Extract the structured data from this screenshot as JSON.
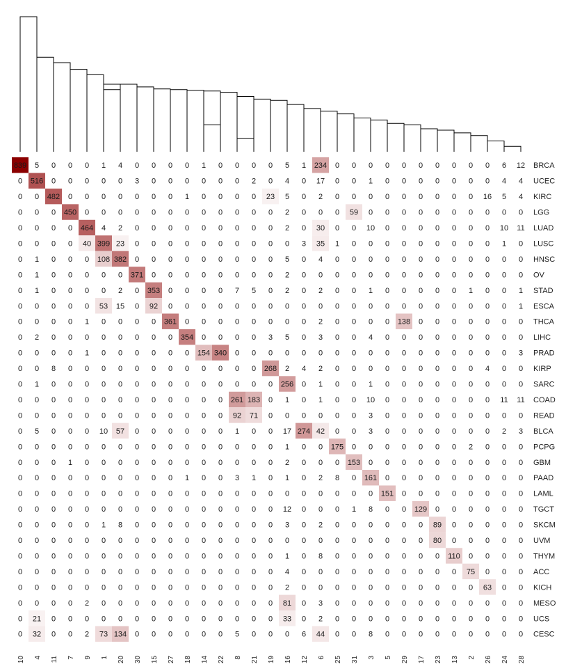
{
  "chart_data": {
    "type": "heatmap",
    "title": "",
    "xlabel": "",
    "ylabel": "",
    "color_low": "#ffffff",
    "color_high": "#8b0000",
    "has_dendrogram": true,
    "row_labels": [
      "BRCA",
      "UCEC",
      "KIRC",
      "LGG",
      "LUAD",
      "LUSC",
      "HNSC",
      "OV",
      "STAD",
      "ESCA",
      "THCA",
      "LIHC",
      "PRAD",
      "KIRP",
      "SARC",
      "COAD",
      "READ",
      "BLCA",
      "PCPG",
      "GBM",
      "PAAD",
      "LAML",
      "TGCT",
      "SKCM",
      "UVM",
      "THYM",
      "ACC",
      "KICH",
      "MESO",
      "UCS",
      "CESC"
    ],
    "col_labels": [
      "10",
      "4",
      "11",
      "7",
      "9",
      "1",
      "20",
      "30",
      "15",
      "27",
      "18",
      "14",
      "22",
      "8",
      "21",
      "19",
      "16",
      "12",
      "6",
      "25",
      "31",
      "3",
      "5",
      "29",
      "17",
      "23",
      "13",
      "2",
      "26",
      "24",
      "28"
    ],
    "values": [
      [
        839,
        5,
        0,
        0,
        0,
        1,
        4,
        0,
        0,
        0,
        0,
        1,
        0,
        0,
        0,
        0,
        5,
        1,
        234,
        0,
        0,
        0,
        0,
        0,
        0,
        0,
        0,
        0,
        0,
        6,
        12
      ],
      [
        0,
        516,
        0,
        0,
        0,
        0,
        0,
        3,
        0,
        0,
        0,
        0,
        0,
        0,
        2,
        0,
        4,
        0,
        17,
        0,
        0,
        1,
        0,
        0,
        0,
        0,
        0,
        0,
        0,
        4,
        4
      ],
      [
        0,
        0,
        482,
        0,
        0,
        0,
        0,
        0,
        0,
        0,
        1,
        0,
        0,
        0,
        0,
        23,
        5,
        0,
        2,
        0,
        0,
        0,
        0,
        0,
        0,
        0,
        0,
        0,
        16,
        5,
        4
      ],
      [
        0,
        0,
        0,
        450,
        0,
        0,
        0,
        0,
        0,
        0,
        0,
        0,
        0,
        0,
        0,
        0,
        2,
        0,
        0,
        0,
        59,
        0,
        0,
        0,
        0,
        0,
        0,
        0,
        0,
        0,
        0
      ],
      [
        0,
        0,
        0,
        0,
        464,
        4,
        2,
        0,
        0,
        0,
        0,
        0,
        0,
        0,
        0,
        0,
        2,
        0,
        30,
        0,
        0,
        10,
        0,
        0,
        0,
        0,
        0,
        0,
        0,
        10,
        11
      ],
      [
        0,
        0,
        0,
        0,
        40,
        399,
        23,
        0,
        0,
        0,
        0,
        0,
        0,
        0,
        0,
        0,
        0,
        3,
        35,
        1,
        0,
        0,
        0,
        0,
        0,
        0,
        0,
        0,
        0,
        1,
        0
      ],
      [
        0,
        1,
        0,
        0,
        0,
        108,
        382,
        0,
        0,
        0,
        0,
        0,
        0,
        0,
        0,
        0,
        5,
        0,
        4,
        0,
        0,
        0,
        0,
        0,
        0,
        0,
        0,
        0,
        0,
        0,
        0
      ],
      [
        0,
        1,
        0,
        0,
        0,
        0,
        0,
        371,
        0,
        0,
        0,
        0,
        0,
        0,
        0,
        0,
        2,
        0,
        0,
        0,
        0,
        0,
        0,
        0,
        0,
        0,
        0,
        0,
        0,
        0,
        0
      ],
      [
        0,
        1,
        0,
        0,
        0,
        0,
        2,
        0,
        353,
        0,
        0,
        0,
        0,
        7,
        5,
        0,
        2,
        0,
        2,
        0,
        0,
        1,
        0,
        0,
        0,
        0,
        0,
        1,
        0,
        0,
        1
      ],
      [
        0,
        0,
        0,
        0,
        0,
        53,
        15,
        0,
        92,
        0,
        0,
        0,
        0,
        0,
        0,
        0,
        0,
        0,
        0,
        0,
        0,
        0,
        0,
        0,
        0,
        0,
        0,
        0,
        0,
        0,
        1
      ],
      [
        0,
        0,
        0,
        0,
        1,
        0,
        0,
        0,
        0,
        361,
        0,
        0,
        0,
        0,
        0,
        0,
        0,
        0,
        2,
        0,
        0,
        0,
        0,
        138,
        0,
        0,
        0,
        0,
        0,
        0,
        0
      ],
      [
        0,
        2,
        0,
        0,
        0,
        0,
        0,
        0,
        0,
        0,
        354,
        0,
        0,
        0,
        0,
        3,
        5,
        0,
        3,
        0,
        0,
        4,
        0,
        0,
        0,
        0,
        0,
        0,
        0,
        0,
        0
      ],
      [
        0,
        0,
        0,
        0,
        1,
        0,
        0,
        0,
        0,
        0,
        0,
        154,
        340,
        0,
        0,
        0,
        0,
        0,
        0,
        0,
        0,
        0,
        0,
        0,
        0,
        0,
        0,
        0,
        0,
        0,
        3
      ],
      [
        0,
        0,
        8,
        0,
        0,
        0,
        0,
        0,
        0,
        0,
        0,
        0,
        0,
        0,
        0,
        268,
        2,
        4,
        2,
        0,
        0,
        0,
        0,
        0,
        0,
        0,
        0,
        0,
        4,
        0,
        0
      ],
      [
        0,
        1,
        0,
        0,
        0,
        0,
        0,
        0,
        0,
        0,
        0,
        0,
        0,
        0,
        0,
        0,
        256,
        0,
        1,
        0,
        0,
        1,
        0,
        0,
        0,
        0,
        0,
        0,
        0,
        0,
        0
      ],
      [
        0,
        0,
        0,
        0,
        0,
        0,
        0,
        0,
        0,
        0,
        0,
        0,
        0,
        261,
        183,
        0,
        1,
        0,
        1,
        0,
        0,
        10,
        0,
        0,
        0,
        0,
        0,
        0,
        0,
        11,
        11
      ],
      [
        0,
        0,
        0,
        0,
        0,
        0,
        0,
        0,
        0,
        0,
        0,
        0,
        0,
        92,
        71,
        0,
        0,
        0,
        0,
        0,
        0,
        3,
        0,
        0,
        0,
        0,
        0,
        0,
        0,
        0,
        0
      ],
      [
        0,
        5,
        0,
        0,
        0,
        10,
        57,
        0,
        0,
        0,
        0,
        0,
        0,
        1,
        0,
        0,
        17,
        274,
        42,
        0,
        0,
        3,
        0,
        0,
        0,
        0,
        0,
        0,
        0,
        2,
        3
      ],
      [
        0,
        0,
        0,
        0,
        0,
        0,
        0,
        0,
        0,
        0,
        0,
        0,
        0,
        0,
        0,
        0,
        1,
        0,
        0,
        175,
        0,
        0,
        0,
        0,
        0,
        0,
        0,
        2,
        0,
        0,
        0
      ],
      [
        0,
        0,
        0,
        1,
        0,
        0,
        0,
        0,
        0,
        0,
        0,
        0,
        0,
        0,
        0,
        0,
        2,
        0,
        0,
        0,
        153,
        0,
        0,
        0,
        0,
        0,
        0,
        0,
        0,
        0,
        0
      ],
      [
        0,
        0,
        0,
        0,
        0,
        0,
        0,
        0,
        0,
        0,
        1,
        0,
        0,
        3,
        1,
        0,
        1,
        0,
        2,
        8,
        0,
        161,
        0,
        0,
        0,
        0,
        0,
        0,
        0,
        0,
        0
      ],
      [
        0,
        0,
        0,
        0,
        0,
        0,
        0,
        0,
        0,
        0,
        0,
        0,
        0,
        0,
        0,
        0,
        0,
        0,
        0,
        0,
        0,
        0,
        151,
        0,
        0,
        0,
        0,
        0,
        0,
        0,
        0
      ],
      [
        0,
        0,
        0,
        0,
        0,
        0,
        0,
        0,
        0,
        0,
        0,
        0,
        0,
        0,
        0,
        0,
        12,
        0,
        0,
        0,
        1,
        8,
        0,
        0,
        129,
        0,
        0,
        0,
        0,
        0,
        0
      ],
      [
        0,
        0,
        0,
        0,
        0,
        1,
        8,
        0,
        0,
        0,
        0,
        0,
        0,
        0,
        0,
        0,
        3,
        0,
        2,
        0,
        0,
        0,
        0,
        0,
        0,
        89,
        0,
        0,
        0,
        0,
        0
      ],
      [
        0,
        0,
        0,
        0,
        0,
        0,
        0,
        0,
        0,
        0,
        0,
        0,
        0,
        0,
        0,
        0,
        0,
        0,
        0,
        0,
        0,
        0,
        0,
        0,
        0,
        80,
        0,
        0,
        0,
        0,
        0
      ],
      [
        0,
        0,
        0,
        0,
        0,
        0,
        0,
        0,
        0,
        0,
        0,
        0,
        0,
        0,
        0,
        0,
        1,
        0,
        8,
        0,
        0,
        0,
        0,
        0,
        0,
        0,
        110,
        0,
        0,
        0,
        0
      ],
      [
        0,
        0,
        0,
        0,
        0,
        0,
        0,
        0,
        0,
        0,
        0,
        0,
        0,
        0,
        0,
        0,
        4,
        0,
        0,
        0,
        0,
        0,
        0,
        0,
        0,
        0,
        0,
        75,
        0,
        0,
        0
      ],
      [
        0,
        0,
        0,
        0,
        0,
        0,
        0,
        0,
        0,
        0,
        0,
        0,
        0,
        0,
        0,
        0,
        2,
        0,
        0,
        0,
        0,
        0,
        0,
        0,
        0,
        0,
        0,
        0,
        63,
        0,
        0
      ],
      [
        0,
        0,
        0,
        0,
        2,
        0,
        0,
        0,
        0,
        0,
        0,
        0,
        0,
        0,
        0,
        0,
        81,
        0,
        3,
        0,
        0,
        0,
        0,
        0,
        0,
        0,
        0,
        0,
        0,
        0,
        0
      ],
      [
        0,
        21,
        0,
        0,
        0,
        0,
        0,
        0,
        0,
        0,
        0,
        0,
        0,
        0,
        0,
        0,
        33,
        0,
        2,
        0,
        0,
        0,
        0,
        0,
        0,
        0,
        0,
        0,
        0,
        0,
        0
      ],
      [
        0,
        32,
        0,
        0,
        2,
        73,
        134,
        0,
        0,
        0,
        0,
        0,
        0,
        5,
        0,
        0,
        0,
        6,
        44,
        0,
        0,
        8,
        0,
        0,
        0,
        0,
        0,
        0,
        0,
        0,
        0
      ]
    ],
    "dendrogram": [
      {
        "a": 0,
        "b": 1,
        "h": 1.0
      },
      {
        "a": 1,
        "b": 2,
        "h": 0.7
      },
      {
        "a": 2,
        "b": 3,
        "h": 0.66
      },
      {
        "a": 3,
        "b": 4,
        "h": 0.61
      },
      {
        "a": 4,
        "b": 5,
        "h": 0.57
      },
      {
        "a": 5,
        "b": 6,
        "h": 0.46
      },
      {
        "a": 5,
        "b": 6,
        "h": 0.5
      },
      {
        "a": 6,
        "b": 7,
        "h": 0.5
      },
      {
        "a": 7,
        "b": 8,
        "h": 0.48
      },
      {
        "a": 8,
        "b": 9,
        "h": 0.465
      },
      {
        "a": 9,
        "b": 10,
        "h": 0.46
      },
      {
        "a": 10,
        "b": 11,
        "h": 0.455
      },
      {
        "a": 11,
        "b": 12,
        "h": 0.2
      },
      {
        "a": 11,
        "b": 12,
        "h": 0.45
      },
      {
        "a": 12,
        "b": 13,
        "h": 0.44
      },
      {
        "a": 13,
        "b": 14,
        "h": 0.1
      },
      {
        "a": 13,
        "b": 14,
        "h": 0.41
      },
      {
        "a": 14,
        "b": 15,
        "h": 0.39
      },
      {
        "a": 15,
        "b": 16,
        "h": 0.38
      },
      {
        "a": 16,
        "b": 17,
        "h": 0.35
      },
      {
        "a": 17,
        "b": 18,
        "h": 0.32
      },
      {
        "a": 18,
        "b": 19,
        "h": 0.3
      },
      {
        "a": 19,
        "b": 20,
        "h": 0.28
      },
      {
        "a": 20,
        "b": 21,
        "h": 0.25
      },
      {
        "a": 21,
        "b": 22,
        "h": 0.235
      },
      {
        "a": 22,
        "b": 23,
        "h": 0.21
      },
      {
        "a": 23,
        "b": 24,
        "h": 0.2
      },
      {
        "a": 24,
        "b": 25,
        "h": 0.17
      },
      {
        "a": 25,
        "b": 26,
        "h": 0.16
      },
      {
        "a": 26,
        "b": 27,
        "h": 0.14
      },
      {
        "a": 27,
        "b": 28,
        "h": 0.12
      },
      {
        "a": 28,
        "b": 29,
        "h": 0.08
      },
      {
        "a": 29,
        "b": 30,
        "h": 0.04
      }
    ]
  }
}
